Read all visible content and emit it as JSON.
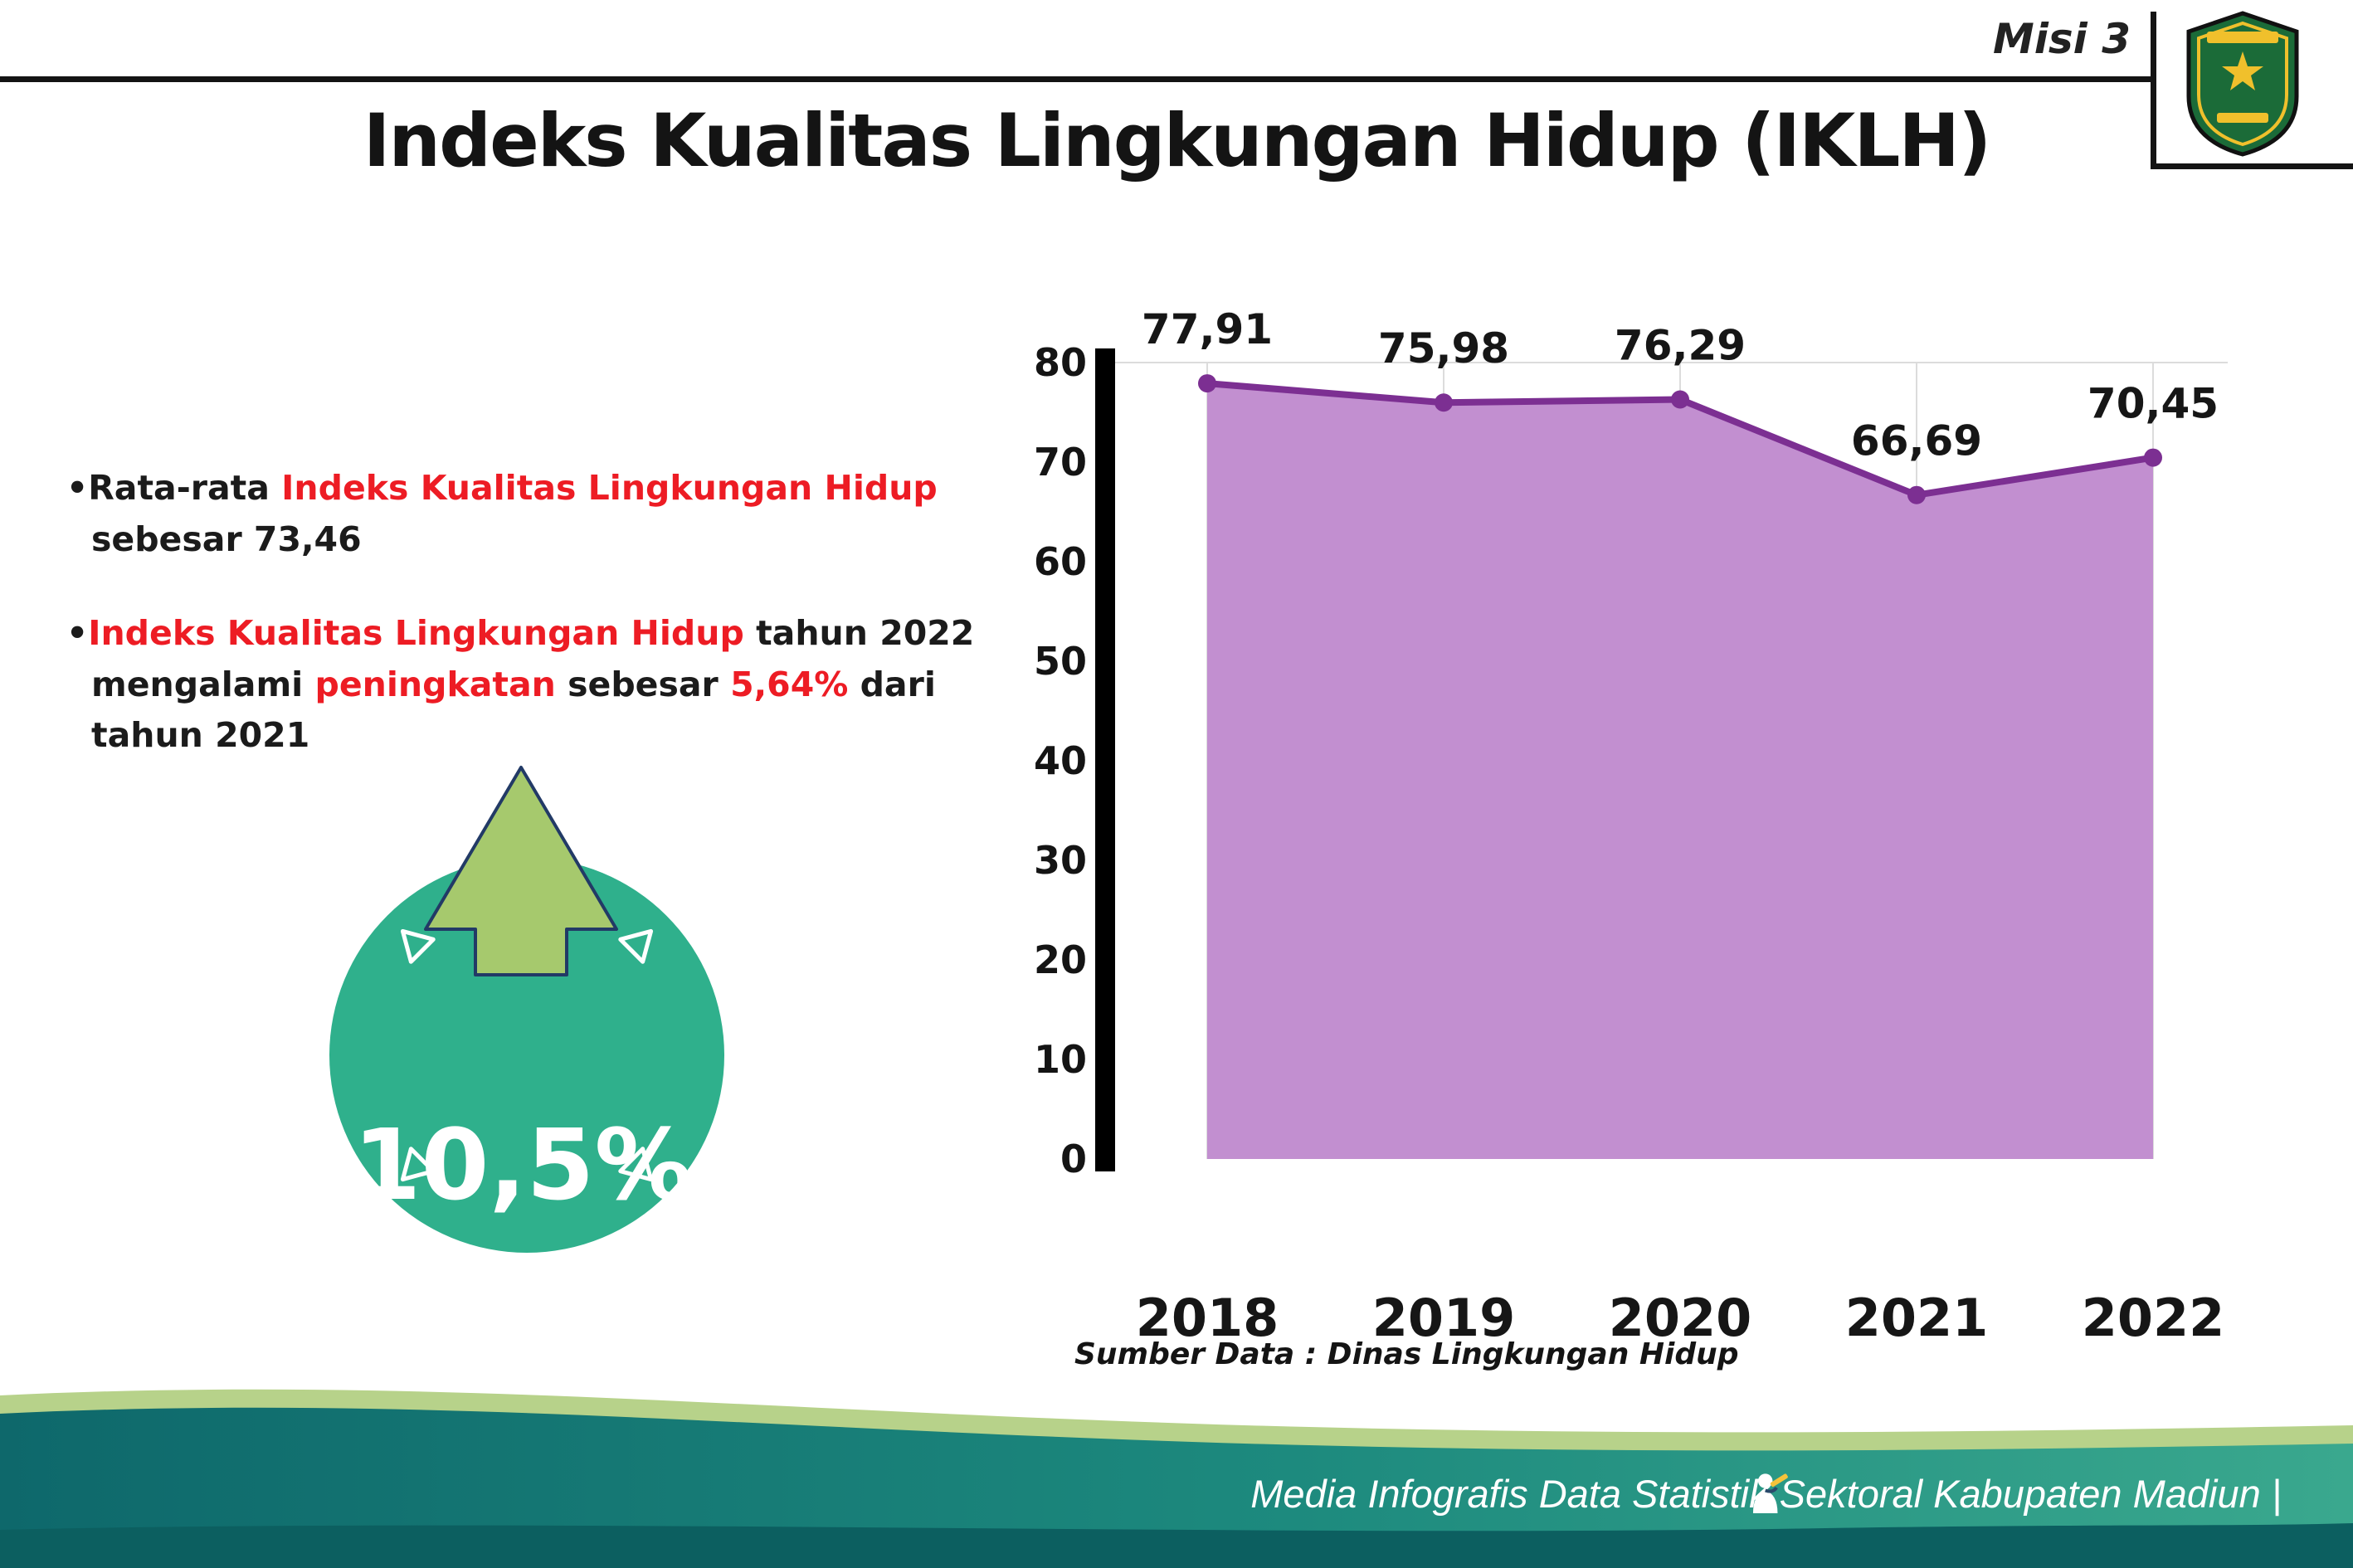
{
  "header": {
    "misi_label": "Misi 3",
    "logo_name": "Kabupaten Madiun"
  },
  "title": "Indeks Kualitas Lingkungan Hidup (IKLH)",
  "bullets": {
    "b1": {
      "marker": "•",
      "pre": "Rata-rata ",
      "red": "Indeks Kualitas Lingkungan Hidup",
      "post": " sebesar 73,46"
    },
    "b2": {
      "marker": "•",
      "red1": "Indeks Kualitas Lingkungan Hidup",
      "t1": " tahun 2022 mengalami ",
      "red2": "peningkatan",
      "t2": " sebesar ",
      "red3": "5,64%",
      "t3": " dari tahun 2021"
    }
  },
  "badge": {
    "value": "10,5%",
    "circle_color": "#2fb08c",
    "arrow_color": "#a6c96d"
  },
  "chart_data": {
    "type": "area",
    "title": "Indeks Kualitas Lingkungan Hidup (IKLH)",
    "categories": [
      "2018",
      "2019",
      "2020",
      "2021",
      "2022"
    ],
    "values": [
      77.91,
      75.98,
      76.29,
      66.69,
      70.45
    ],
    "point_labels": [
      "77,91",
      "75,98",
      "76,29",
      "66,69",
      "70,45"
    ],
    "ylim": [
      0,
      80
    ],
    "yticks": [
      0,
      10,
      20,
      30,
      40,
      50,
      60,
      70,
      80
    ],
    "grid": "light vertical gridlines per year",
    "legend": "none",
    "line_color": "#7c2f92",
    "fill_color": "#c28fd0",
    "source_note": "Sumber Data : Dinas Lingkungan Hidup"
  },
  "footer": {
    "text": "Media Infografis Data Statistik Sektoral Kabupaten Madiun |"
  },
  "colors": {
    "accent_red": "#ed1c24",
    "footer_teal_dark": "#0e686b",
    "footer_teal_light": "#3aa88e",
    "footer_green": "#b7d28a",
    "footer_bottom": "#0c5f60"
  }
}
